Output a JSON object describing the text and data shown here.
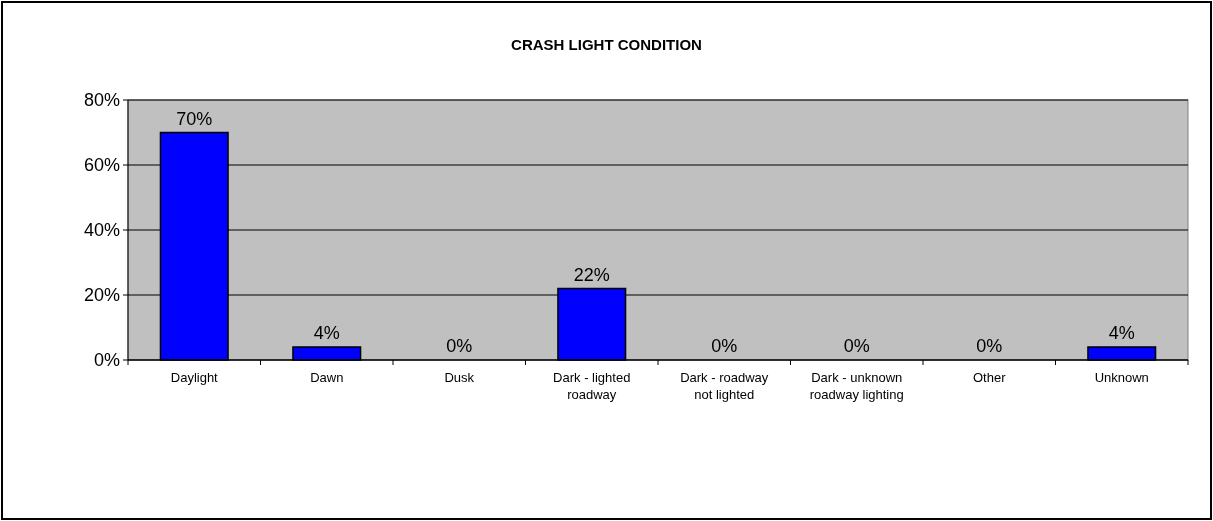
{
  "chart_data": {
    "type": "bar",
    "title": "CRASH LIGHT CONDITION",
    "categories": [
      "Daylight",
      "Dawn",
      "Dusk",
      "Dark - lighted roadway",
      "Dark - roadway not lighted",
      "Dark - unknown roadway lighting",
      "Other",
      "Unknown"
    ],
    "values": [
      70,
      4,
      0,
      22,
      0,
      0,
      0,
      4
    ],
    "value_labels": [
      "70%",
      "4%",
      "0%",
      "22%",
      "0%",
      "0%",
      "0%",
      "4%"
    ],
    "color": "#0000ff",
    "ylim": [
      0,
      80
    ],
    "yticks": [
      {
        "value": 0,
        "label": "0%"
      },
      {
        "value": 20,
        "label": "20%"
      },
      {
        "value": 40,
        "label": "40%"
      },
      {
        "value": 60,
        "label": "60%"
      },
      {
        "value": 80,
        "label": "80%"
      }
    ],
    "grid": "y"
  }
}
